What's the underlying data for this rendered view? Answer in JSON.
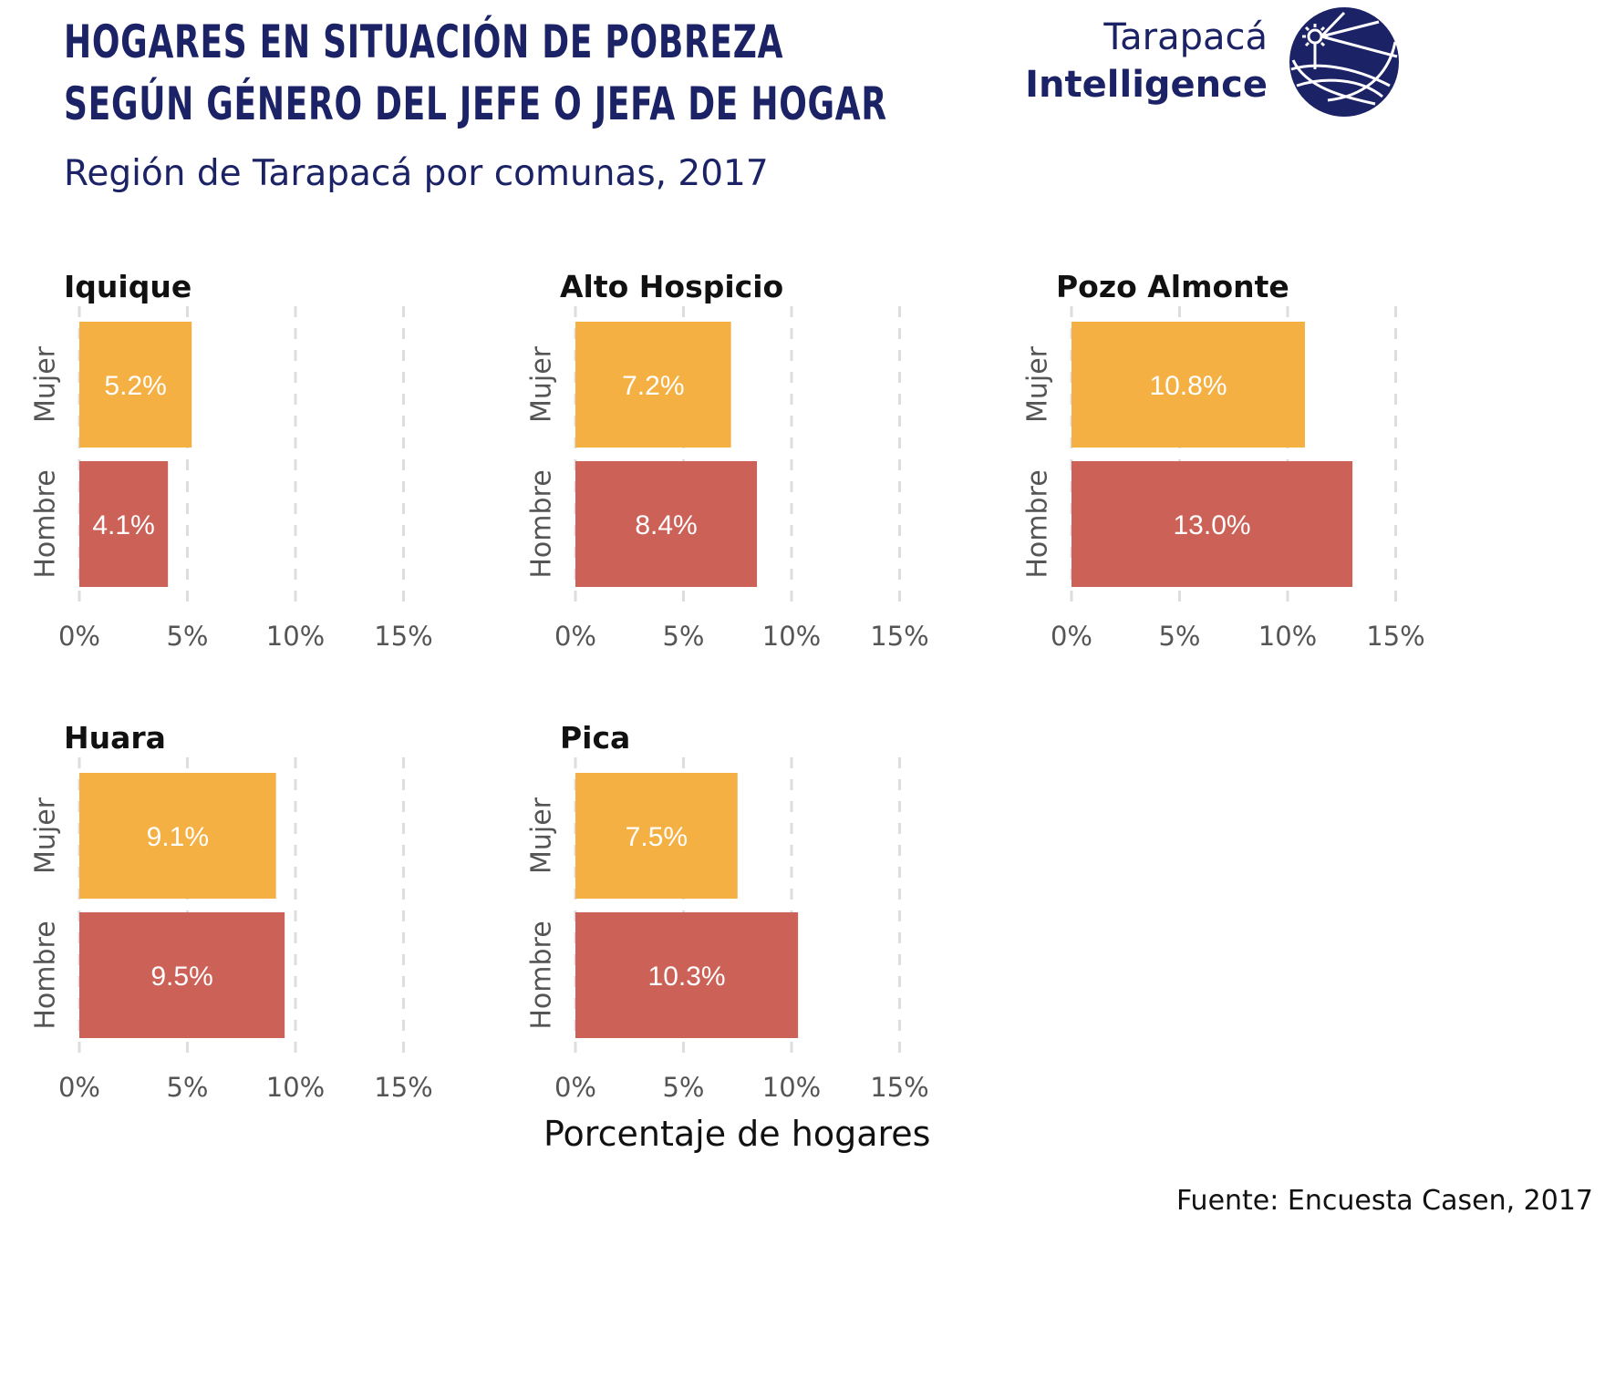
{
  "header": {
    "title_line1": "HOGARES EN SITUACIÓN DE POBREZA",
    "title_line2": "SEGÚN GÉNERO DEL JEFE O JEFA DE HOGAR",
    "subtitle": "Región de Tarapacá por comunas, 2017"
  },
  "brand": {
    "line1": "Tarapacá",
    "line2": "Intelligence",
    "logo_icon": "globe-sun-logo-icon",
    "color": "#1b2266"
  },
  "colors": {
    "mujer": "#f4b042",
    "hombre": "#cc6157",
    "grid": "#dddddd",
    "tick_text": "#555555",
    "bar_label": "#ffffff"
  },
  "chart_data": [
    {
      "type": "bar",
      "orientation": "horizontal",
      "title": "Iquique",
      "categories": [
        "Mujer",
        "Hombre"
      ],
      "values": [
        5.2,
        4.1
      ],
      "labels": [
        "5.2%",
        "4.1%"
      ],
      "xlim": [
        0,
        15
      ],
      "xticks": [
        0,
        5,
        10,
        15
      ],
      "xtick_labels": [
        "0%",
        "5%",
        "10%",
        "15%"
      ],
      "grid": "vertical dashed"
    },
    {
      "type": "bar",
      "orientation": "horizontal",
      "title": "Alto Hospicio",
      "categories": [
        "Mujer",
        "Hombre"
      ],
      "values": [
        7.2,
        8.4
      ],
      "labels": [
        "7.2%",
        "8.4%"
      ],
      "xlim": [
        0,
        15
      ],
      "xticks": [
        0,
        5,
        10,
        15
      ],
      "xtick_labels": [
        "0%",
        "5%",
        "10%",
        "15%"
      ],
      "grid": "vertical dashed"
    },
    {
      "type": "bar",
      "orientation": "horizontal",
      "title": "Pozo Almonte",
      "categories": [
        "Mujer",
        "Hombre"
      ],
      "values": [
        10.8,
        13.0
      ],
      "labels": [
        "10.8%",
        "13.0%"
      ],
      "xlim": [
        0,
        15
      ],
      "xticks": [
        0,
        5,
        10,
        15
      ],
      "xtick_labels": [
        "0%",
        "5%",
        "10%",
        "15%"
      ],
      "grid": "vertical dashed"
    },
    {
      "type": "bar",
      "orientation": "horizontal",
      "title": "Huara",
      "categories": [
        "Mujer",
        "Hombre"
      ],
      "values": [
        9.1,
        9.5
      ],
      "labels": [
        "9.1%",
        "9.5%"
      ],
      "xlim": [
        0,
        15
      ],
      "xticks": [
        0,
        5,
        10,
        15
      ],
      "xtick_labels": [
        "0%",
        "5%",
        "10%",
        "15%"
      ],
      "grid": "vertical dashed"
    },
    {
      "type": "bar",
      "orientation": "horizontal",
      "title": "Pica",
      "categories": [
        "Mujer",
        "Hombre"
      ],
      "values": [
        7.5,
        10.3
      ],
      "labels": [
        "7.5%",
        "10.3%"
      ],
      "xlim": [
        0,
        15
      ],
      "xticks": [
        0,
        5,
        10,
        15
      ],
      "xtick_labels": [
        "0%",
        "5%",
        "10%",
        "15%"
      ],
      "grid": "vertical dashed"
    }
  ],
  "axes": {
    "xlabel": "Porcentaje de hogares"
  },
  "footer": {
    "source": "Fuente: Encuesta Casen, 2017"
  }
}
